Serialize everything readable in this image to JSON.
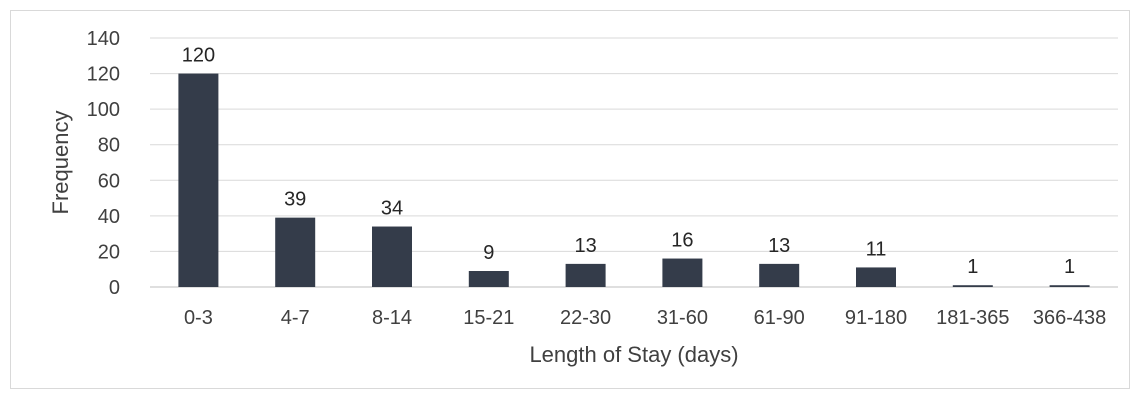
{
  "chart_data": {
    "type": "bar",
    "title": "",
    "xlabel": "Length of Stay (days)",
    "ylabel": "Frequency",
    "categories": [
      "0-3",
      "4-7",
      "8-14",
      "15-21",
      "22-30",
      "31-60",
      "61-90",
      "91-180",
      "181-365",
      "366-438"
    ],
    "values": [
      120,
      39,
      34,
      9,
      13,
      16,
      13,
      11,
      1,
      1
    ],
    "ylim": [
      0,
      140
    ],
    "yticks": [
      0,
      20,
      40,
      60,
      80,
      100,
      120,
      140
    ],
    "grid": true,
    "legend": "none",
    "colors": {
      "bar": "#343c4a",
      "grid": "#d9d9d9",
      "axis": "#bfbfbf"
    }
  }
}
